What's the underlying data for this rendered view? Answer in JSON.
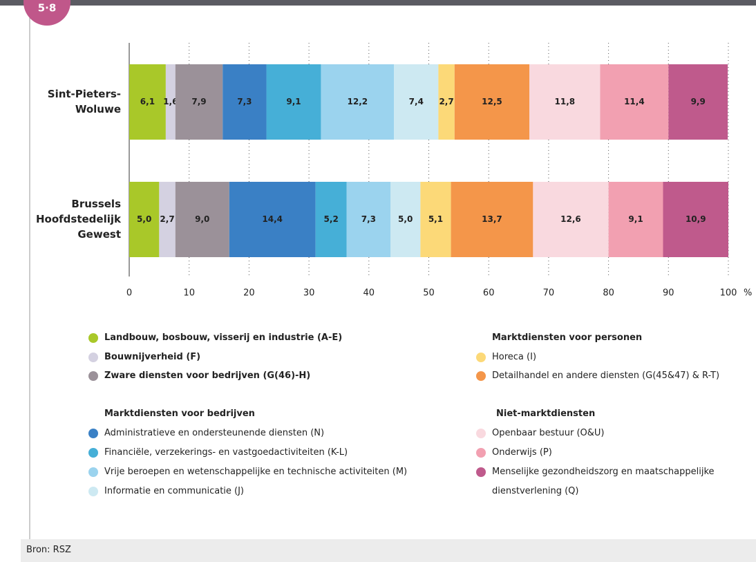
{
  "badge": "5·8",
  "source": "Bron: RSZ",
  "chart_data": {
    "type": "stacked-barh",
    "categories": [
      [
        "Sint-Pieters-",
        "Woluwe"
      ],
      [
        "Brussels",
        "Hoofdstedelijk",
        "Gewest"
      ]
    ],
    "xlim": [
      0,
      100
    ],
    "xticks": [
      0,
      10,
      20,
      30,
      40,
      50,
      60,
      70,
      80,
      90,
      100
    ],
    "xlabel": "%",
    "grid": true,
    "series": [
      {
        "name": "Landbouw, bosbouw, visserij en industrie (A-E)",
        "color": "#a9c829",
        "values": [
          6.1,
          5.0
        ],
        "value_labels": [
          "6,1",
          "5,0"
        ]
      },
      {
        "name": "Bouwnijverheid (F)",
        "color": "#d4d1e1",
        "values": [
          1.6,
          2.7
        ],
        "value_labels": [
          "1,6",
          "2,7"
        ]
      },
      {
        "name": "Zware diensten voor bedrijven (G(46)-H)",
        "color": "#9b9199",
        "values": [
          7.9,
          9.0
        ],
        "value_labels": [
          "7,9",
          "9,0"
        ]
      },
      {
        "name": "Administratieve en ondersteunende diensten (N)",
        "group": "Marktdiensten voor bedrijven",
        "color": "#3a80c5",
        "values": [
          7.3,
          14.4
        ],
        "value_labels": [
          "7,3",
          "14,4"
        ]
      },
      {
        "name": "Financiële, verzekerings- en vastgoedactiviteiten (K-L)",
        "group": "Marktdiensten voor bedrijven",
        "color": "#46afd7",
        "values": [
          9.1,
          5.2
        ],
        "value_labels": [
          "9,1",
          "5,2"
        ]
      },
      {
        "name": "Vrije beroepen en wetenschappelijke en technische activiteiten (M)",
        "group": "Marktdiensten voor bedrijven",
        "color": "#9bd3ee",
        "values": [
          12.2,
          7.3
        ],
        "value_labels": [
          "12,2",
          "7,3"
        ]
      },
      {
        "name": "Informatie en communicatie (J)",
        "group": "Marktdiensten voor bedrijven",
        "color": "#cde9f2",
        "values": [
          7.4,
          5.0
        ],
        "value_labels": [
          "7,4",
          "5,0"
        ]
      },
      {
        "name": "Horeca (I)",
        "group": "Marktdiensten voor personen",
        "color": "#fcd978",
        "values": [
          2.7,
          5.1
        ],
        "value_labels": [
          "2,7",
          "5,1"
        ]
      },
      {
        "name": "Detailhandel en andere diensten (G(45&47) & R-T)",
        "group": "Marktdiensten voor personen",
        "color": "#f4964a",
        "values": [
          12.5,
          13.7
        ],
        "value_labels": [
          "12,5",
          "13,7"
        ]
      },
      {
        "name": "Openbaar bestuur (O&U)",
        "group": "Niet-marktdiensten",
        "color": "#f9d9df",
        "values": [
          11.8,
          12.6
        ],
        "value_labels": [
          "11,8",
          "12,6"
        ]
      },
      {
        "name": "Onderwijs (P)",
        "group": "Niet-marktdiensten",
        "color": "#f2a0b1",
        "values": [
          11.4,
          9.1
        ],
        "value_labels": [
          "11,4",
          "9,1"
        ]
      },
      {
        "name": "Menselijke gezondheidszorg en maatschappelijke dienstverlening (Q)",
        "group": "Niet-marktdiensten",
        "color": "#bf5a8c",
        "values": [
          9.9,
          10.9
        ],
        "value_labels": [
          "9,9",
          "10,9"
        ]
      }
    ]
  }
}
